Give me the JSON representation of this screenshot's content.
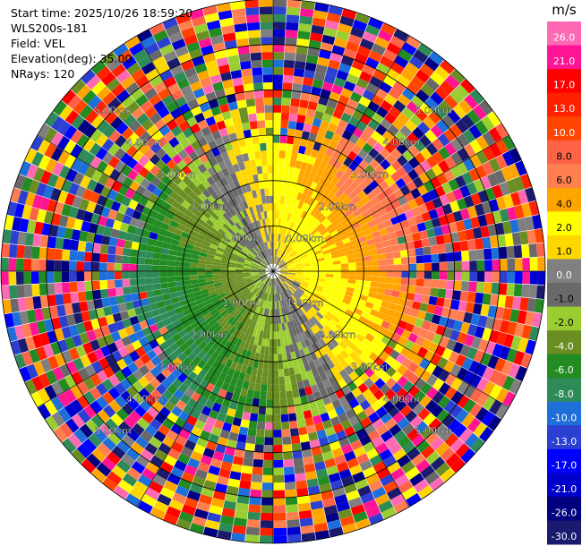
{
  "info": {
    "start_time": "Start time: 2025/10/26 18:59:20",
    "instrument": "WLS200s-181",
    "field": "Field: VEL",
    "elevation": "Elevation(deg): 35.00",
    "nrays": "NRays: 120"
  },
  "chart_data": {
    "type": "heatmap",
    "projection": "polar-ppi",
    "field": "VEL",
    "units": "m/s",
    "nrays": 120,
    "range_rings_km": [
      1,
      2,
      3,
      4,
      5,
      6
    ],
    "ring_labels": [
      "1.00km",
      "2.00km",
      "3.00km",
      "4.00km",
      "5.00km"
    ],
    "max_range_km": 6.0,
    "colorbar": {
      "label": "m/s",
      "ticks": [
        "26.0",
        "21.0",
        "17.0",
        "13.0",
        "10.0",
        "8.0",
        "6.0",
        "4.0",
        "2.0",
        "1.0",
        "0.0",
        "-1.0",
        "-2.0",
        "-4.0",
        "-6.0",
        "-8.0",
        "-10.0",
        "-13.0",
        "-17.0",
        "-21.0",
        "-26.0",
        "-30.0"
      ],
      "levels": [
        -30,
        -26,
        -21,
        -17,
        -13,
        -10,
        -8,
        -6,
        -4,
        -2,
        -1,
        0,
        1,
        2,
        4,
        6,
        8,
        10,
        13,
        17,
        21,
        26,
        30
      ],
      "colors": [
        "#1a1a6e",
        "#000080",
        "#0000cd",
        "#0000ff",
        "#2b3fd1",
        "#1e6fd9",
        "#2e8b57",
        "#228b22",
        "#6b8e23",
        "#9acd32",
        "#696969",
        "#808080",
        "#ffd700",
        "#ffff00",
        "#ffa500",
        "#ff7f50",
        "#ff6347",
        "#ff4500",
        "#ff2000",
        "#ff0000",
        "#ff1493",
        "#ff69b4"
      ]
    }
  }
}
